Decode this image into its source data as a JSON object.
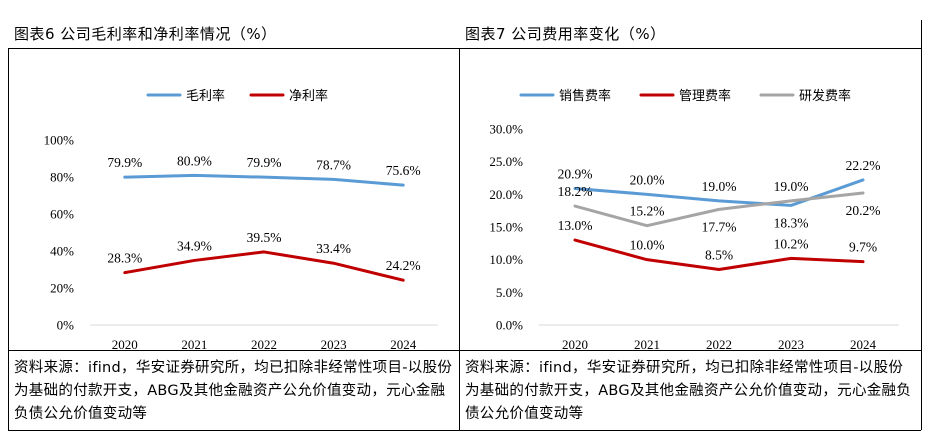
{
  "panels": [
    {
      "title": "图表6 公司毛利率和净利率情况（%）",
      "source": "资料来源：ifind，华安证券研究所，均已扣除非经常性项目-以股份为基础的付款开支，ABG及其他金融资产公允价值变动，元心金融负债公允价值变动等",
      "chart_data": {
        "type": "line",
        "title": "图表6 公司毛利率和净利率情况（%）",
        "categories": [
          "2020",
          "2021",
          "2022",
          "2023",
          "2024"
        ],
        "ylim": [
          0,
          100
        ],
        "yticks": [
          0,
          20,
          40,
          60,
          80,
          100
        ],
        "ytick_labels": [
          "0%",
          "20%",
          "40%",
          "60%",
          "80%",
          "100%"
        ],
        "legend_position": "top",
        "grid": false,
        "series": [
          {
            "name": "毛利率",
            "color": "#5B9BD5",
            "values": [
              79.9,
              80.9,
              79.9,
              78.7,
              75.6
            ],
            "labels": [
              "79.9%",
              "80.9%",
              "79.9%",
              "78.7%",
              "75.6%"
            ],
            "label_pos": [
              "above",
              "above",
              "above",
              "above",
              "above"
            ]
          },
          {
            "name": "净利率",
            "color": "#C00000",
            "values": [
              28.3,
              34.9,
              39.5,
              33.4,
              24.2
            ],
            "labels": [
              "28.3%",
              "34.9%",
              "39.5%",
              "33.4%",
              "24.2%"
            ],
            "label_pos": [
              "above",
              "above",
              "above",
              "above",
              "above"
            ]
          }
        ]
      }
    },
    {
      "title": "图表7 公司费用率变化（%）",
      "source": "资料来源：ifind，华安证券研究所，均已扣除非经常性项目-以股份为基础的付款开支，ABG及其他金融资产公允价值变动，元心金融负债公允价值变动等",
      "chart_data": {
        "type": "line",
        "title": "图表7 公司费用率变化（%）",
        "categories": [
          "2020",
          "2021",
          "2022",
          "2023",
          "2024"
        ],
        "ylim": [
          0,
          30
        ],
        "yticks": [
          0,
          5,
          10,
          15,
          20,
          25,
          30
        ],
        "ytick_labels": [
          "0.0%",
          "5.0%",
          "10.0%",
          "15.0%",
          "20.0%",
          "25.0%",
          "30.0%"
        ],
        "legend_position": "top",
        "grid": false,
        "series": [
          {
            "name": "销售费率",
            "color": "#5B9BD5",
            "values": [
              20.9,
              20.0,
              19.0,
              18.3,
              22.2
            ],
            "labels": [
              "20.9%",
              "20.0%",
              "19.0%",
              "18.3%",
              "22.2%"
            ],
            "label_pos": [
              "above",
              "above",
              "above",
              "below",
              "above"
            ]
          },
          {
            "name": "管理费率",
            "color": "#C00000",
            "values": [
              13.0,
              10.0,
              8.5,
              10.2,
              9.7
            ],
            "labels": [
              "13.0%",
              "10.0%",
              "8.5%",
              "10.2%",
              "9.7%"
            ],
            "label_pos": [
              "above",
              "above",
              "above",
              "above",
              "above"
            ]
          },
          {
            "name": "研发费率",
            "color": "#A5A5A5",
            "values": [
              18.2,
              15.2,
              17.7,
              19.0,
              20.2
            ],
            "labels": [
              "18.2%",
              "15.2%",
              "17.7%",
              "19.0%",
              "20.2%"
            ],
            "label_pos": [
              "above",
              "above",
              "below",
              "above",
              "below"
            ]
          }
        ]
      }
    }
  ]
}
